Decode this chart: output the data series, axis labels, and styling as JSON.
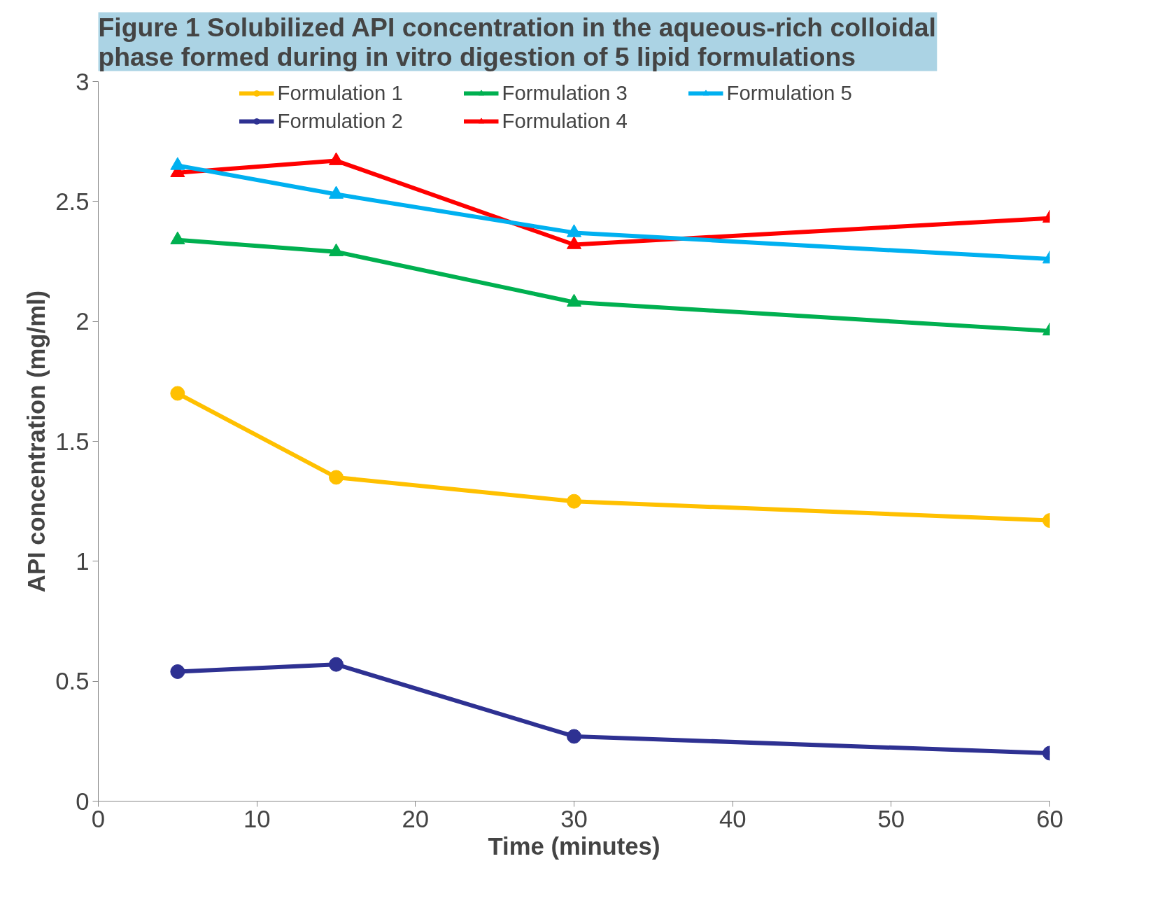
{
  "chart_data": {
    "type": "line",
    "title": "Figure 1 Solubilized API concentration in the aqueous-rich colloidal phase formed during in vitro digestion of 5 lipid formulations",
    "xlabel": "Time (minutes)",
    "ylabel": "API concentration (mg/ml)",
    "x": [
      5,
      15,
      30,
      60
    ],
    "xlim": [
      0,
      60
    ],
    "xticks": [
      0,
      10,
      20,
      30,
      40,
      50,
      60
    ],
    "ylim": [
      0,
      3
    ],
    "yticks": [
      0,
      0.5,
      1,
      1.5,
      2,
      2.5,
      3
    ],
    "grid": false,
    "legend": "top",
    "line_style": "solid",
    "series": [
      {
        "name": "Formulation 1",
        "color": "#ffc000",
        "marker": "circle",
        "values": [
          1.7,
          1.35,
          1.25,
          1.17
        ]
      },
      {
        "name": "Formulation 2",
        "color": "#2e3192",
        "marker": "circle",
        "values": [
          0.54,
          0.57,
          0.27,
          0.2
        ]
      },
      {
        "name": "Formulation 3",
        "color": "#00b050",
        "marker": "triangle",
        "values": [
          2.34,
          2.29,
          2.08,
          1.96
        ]
      },
      {
        "name": "Formulation 4",
        "color": "#ff0000",
        "marker": "triangle",
        "values": [
          2.62,
          2.67,
          2.32,
          2.43
        ]
      },
      {
        "name": "Formulation 5",
        "color": "#00b0f0",
        "marker": "triangle",
        "values": [
          2.65,
          2.53,
          2.37,
          2.26
        ]
      }
    ]
  }
}
